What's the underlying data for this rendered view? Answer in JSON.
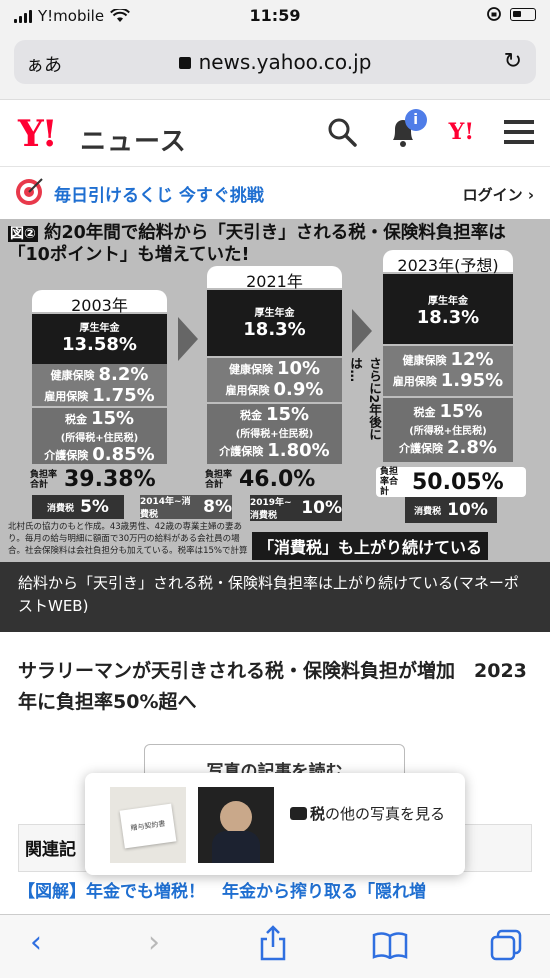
{
  "status": {
    "carrier": "Y!mobile",
    "time": "11:59"
  },
  "browser": {
    "aa_label": "ぁあ",
    "url": "news.yahoo.co.jp"
  },
  "header": {
    "logo": "Y!",
    "section": "ニュース"
  },
  "lottery": {
    "text": "毎日引けるくじ 今すぐ挑戦",
    "login": "ログイン"
  },
  "figure": {
    "badge": "図②",
    "title_line1": "約20年間で給料から「天引き」される税・保険料負担率は",
    "title_line2": "「10ポイント」も増えていた!",
    "columns": [
      {
        "year": "2003年",
        "pension_label": "厚生年金",
        "pension": "13.58%",
        "health_label": "健康保険",
        "health": "8.2%",
        "employ_label": "雇用保険",
        "employ": "1.75%",
        "tax_label": "税金",
        "tax": "15%",
        "tax_sub": "(所得税+住民税)",
        "care_label": "介護保険",
        "care": "0.85%",
        "total_label": "負担率合計",
        "total": "39.38%",
        "cons_label": "消費税",
        "cons": "5%"
      },
      {
        "year": "2021年",
        "pension_label": "厚生年金",
        "pension": "18.3%",
        "health_label": "健康保険",
        "health": "10%",
        "employ_label": "雇用保険",
        "employ": "0.9%",
        "tax_label": "税金",
        "tax": "15%",
        "tax_sub": "(所得税+住民税)",
        "care_label": "介護保険",
        "care": "1.80%",
        "total_label": "負担率合計",
        "total": "46.0%",
        "cons_label": "2019年~消費税",
        "cons": "10%"
      },
      {
        "year": "2023年(予想)",
        "pension_label": "厚生年金",
        "pension": "18.3%",
        "health_label": "健康保険",
        "health": "12%",
        "employ_label": "雇用保険",
        "employ": "1.95%",
        "tax_label": "税金",
        "tax": "15%",
        "tax_sub": "(所得税+住民税)",
        "care_label": "介護保険",
        "care": "2.8%",
        "total_label": "負担率合計",
        "total": "50.05%",
        "cons_label": "消費税",
        "cons": "10%"
      }
    ],
    "mid_tax_label": "2014年~消費税",
    "mid_tax": "8%",
    "vertical_note": "さらに2年後には…",
    "note": "北村氏の協力のもと作成。43歳男性、42歳の専業主婦の妻あり。毎月の給与明細に額面で30万円の給料がある会社員の場合。社会保険料は会社負担分も加えている。税率は15%で計算",
    "banner": "「消費税」も上がり続けている"
  },
  "caption": "給料から「天引き」される税・保険料負担率は上がり続けている(マネーポストWEB)",
  "headline": "サラリーマンが天引きされる税・保険料負担が増加　2023年に負担率50%超へ",
  "read_button": "写真の記事を読む",
  "related_title": "関連記",
  "links": "【図解】年金でも増税！　年金から搾り取る「隠れ増",
  "popup": {
    "thumb1_text": "贈与契約書",
    "text_bold": "税",
    "text_rest": "の他の写真を見る"
  }
}
